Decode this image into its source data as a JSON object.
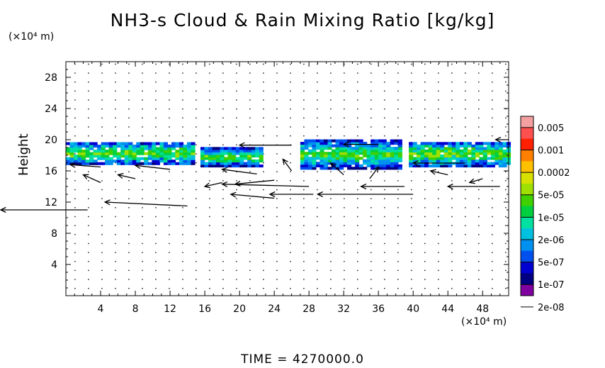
{
  "chart_data": {
    "type": "heatmap",
    "title": "NH3-s Cloud & Rain Mixing Ratio [kg/kg]",
    "ylabel": "Height",
    "x_unit": "(×10⁴ m)",
    "y_unit": "(×10⁴ m)",
    "footer": "TIME  =  4270000.0",
    "xlim": [
      0,
      51
    ],
    "ylim": [
      0,
      30
    ],
    "x_ticks": [
      4,
      8,
      12,
      16,
      20,
      24,
      28,
      32,
      36,
      40,
      44,
      48
    ],
    "y_ticks": [
      4,
      8,
      12,
      16,
      20,
      24,
      28
    ],
    "x_tick_labels": [
      "4",
      "8",
      "12",
      "16",
      "20",
      "24",
      "28",
      "32",
      "36",
      "40",
      "44",
      "48"
    ],
    "y_tick_labels": [
      "4",
      "8",
      "12",
      "16",
      "20",
      "24",
      "28"
    ],
    "colorbar": {
      "labels": [
        "0.005",
        "0.001",
        "0.0002",
        "5e-05",
        "1e-05",
        "2e-06",
        "5e-07",
        "1e-07",
        "2e-08"
      ],
      "colors": [
        "#f4a0a0",
        "#ff5050",
        "#ff2000",
        "#ff8000",
        "#ffc000",
        "#d8e000",
        "#a0e000",
        "#40d000",
        "#00d040",
        "#00e0a0",
        "#00c0e0",
        "#0090f0",
        "#0050f0",
        "#0000d0",
        "#000080",
        "#8000a0"
      ]
    },
    "cloud_patches": [
      {
        "x": [
          0,
          14.5
        ],
        "y": [
          16.8,
          19.5
        ],
        "level": 9
      },
      {
        "x": [
          15.5,
          22.5
        ],
        "y": [
          16.5,
          18.8
        ],
        "level": 8
      },
      {
        "x": [
          27,
          38.5
        ],
        "y": [
          16.2,
          19.8
        ],
        "level": 8
      },
      {
        "x": [
          39.5,
          51
        ],
        "y": [
          16.5,
          19.6
        ],
        "level": 9
      }
    ],
    "wind_arrows": [
      {
        "x": 2.5,
        "y": 11.0,
        "u": 10.0,
        "v": 0
      },
      {
        "x": 14.0,
        "y": 11.5,
        "u": 9.5,
        "v": 0.5
      },
      {
        "x": 24.0,
        "y": 12.5,
        "u": 5.0,
        "v": 0.5
      },
      {
        "x": 28.5,
        "y": 13.0,
        "u": 5.0,
        "v": 0
      },
      {
        "x": 40.0,
        "y": 13.0,
        "u": 11.0,
        "v": 0
      },
      {
        "x": 28.0,
        "y": 14.0,
        "u": 10.0,
        "v": 0.3
      },
      {
        "x": 39.0,
        "y": 14.0,
        "u": 5.0,
        "v": 0
      },
      {
        "x": 50.0,
        "y": 14.0,
        "u": 6.0,
        "v": 0
      },
      {
        "x": 24.0,
        "y": 14.8,
        "u": 4.5,
        "v": -0.5
      },
      {
        "x": 12.0,
        "y": 16.2,
        "u": 4.0,
        "v": 0.5
      },
      {
        "x": 4.0,
        "y": 16.5,
        "u": 3.5,
        "v": 0.3
      },
      {
        "x": 22.0,
        "y": 15.6,
        "u": 4.0,
        "v": 0.6
      },
      {
        "x": 26.0,
        "y": 19.3,
        "u": 6.0,
        "v": 0
      },
      {
        "x": 36.0,
        "y": 19.4,
        "u": 4.0,
        "v": 0
      },
      {
        "x": 46.0,
        "y": 17.0,
        "u": 6.0,
        "v": 0
      },
      {
        "x": 51.0,
        "y": 20.0,
        "u": 1.5,
        "v": 0
      },
      {
        "x": 4.0,
        "y": 14.5,
        "u": 2.0,
        "v": 1.0
      },
      {
        "x": 8.0,
        "y": 15.0,
        "u": 2.0,
        "v": 0.5
      },
      {
        "x": 18.0,
        "y": 14.5,
        "u": 2.0,
        "v": -0.5
      },
      {
        "x": 32.0,
        "y": 15.5,
        "u": 1.5,
        "v": 1.5
      },
      {
        "x": 35.0,
        "y": 15.0,
        "u": -1.0,
        "v": 1.5
      },
      {
        "x": 44.0,
        "y": 15.5,
        "u": 2.0,
        "v": 0.5
      },
      {
        "x": 48.0,
        "y": 15.0,
        "u": 1.5,
        "v": -0.5
      },
      {
        "x": 26.0,
        "y": 16.0,
        "u": 1.0,
        "v": 1.5
      }
    ]
  }
}
